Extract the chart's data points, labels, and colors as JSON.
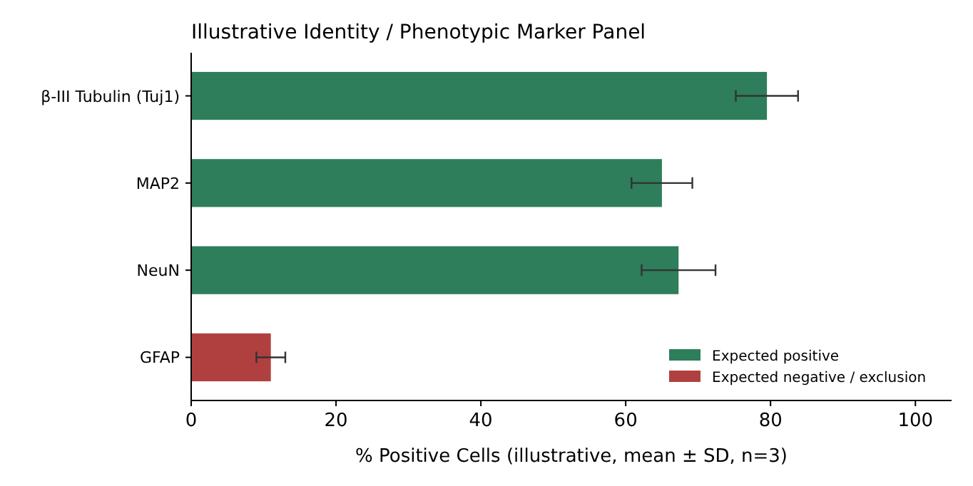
{
  "chart_data": {
    "type": "bar",
    "orientation": "horizontal",
    "stacked": true,
    "title": "Illustrative Identity / Phenotypic Marker Panel",
    "xlabel": "% Positive Cells (illustrative, mean ± SD, n=3)",
    "categories": [
      "β-III Tubulin (Tuj1)",
      "MAP2",
      "NeuN",
      "GFAP"
    ],
    "series": [
      {
        "name": "Expected positive",
        "color": "#2e7d5b",
        "values": [
          79.5,
          65,
          67.3,
          null
        ],
        "errors": [
          4.3,
          4.2,
          5.1,
          null
        ]
      },
      {
        "name": "Expected negative / exclusion",
        "color": "#b04040",
        "values": [
          null,
          null,
          null,
          11
        ],
        "errors": [
          null,
          null,
          null,
          2
        ]
      }
    ],
    "xlim": [
      0,
      105
    ],
    "xticks": [
      0,
      20,
      40,
      60,
      80,
      100
    ],
    "grid": false,
    "legend": "bottom right"
  }
}
